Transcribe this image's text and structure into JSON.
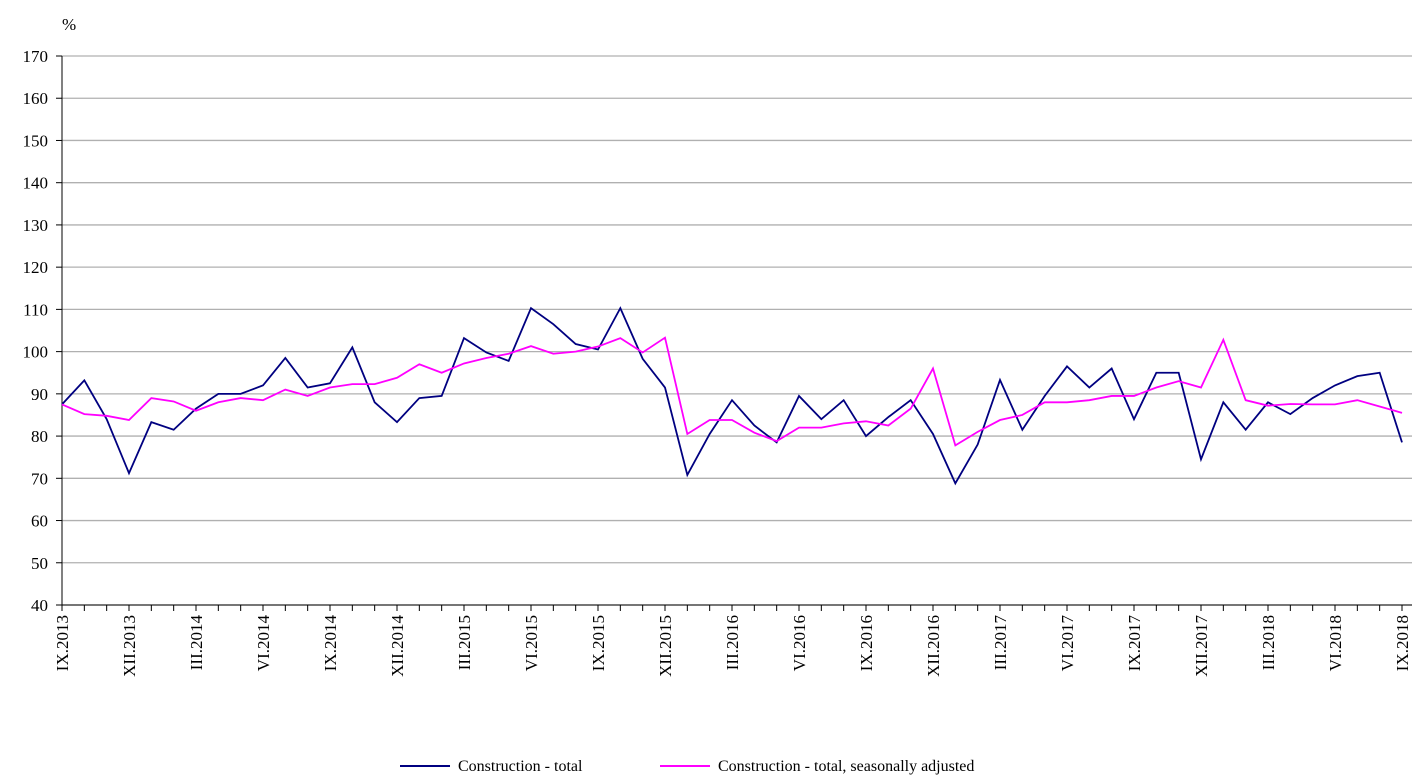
{
  "chart_data": {
    "type": "line",
    "ylabel": "%",
    "categories": [
      "IX.2013",
      null,
      null,
      "XII.2013",
      null,
      null,
      "III.2014",
      null,
      null,
      "VI.2014",
      null,
      null,
      "IX.2014",
      null,
      null,
      "XII.2014",
      null,
      null,
      "III.2015",
      null,
      null,
      "VI.2015",
      null,
      null,
      "IX.2015",
      null,
      null,
      "XII.2015",
      null,
      null,
      "III.2016",
      null,
      null,
      "VI.2016",
      null,
      null,
      "IX.2016",
      null,
      null,
      "XII.2016",
      null,
      null,
      "III.2017",
      null,
      null,
      "VI.2017",
      null,
      null,
      "IX.2017",
      null,
      null,
      "XII.2017",
      null,
      null,
      "III.2018",
      null,
      null,
      "VI.2018",
      null,
      null,
      "IX.2018"
    ],
    "series": [
      {
        "name": "Construction - total",
        "color": "#000080",
        "values": [
          87.5,
          93.2,
          84,
          71.2,
          83.3,
          81.5,
          86.5,
          90,
          90,
          92,
          98.5,
          91.5,
          92.5,
          101,
          88,
          83.3,
          89,
          89.5,
          103.2,
          99.8,
          97.8,
          110.3,
          106.5,
          101.8,
          100.5,
          110.3,
          98.3,
          91.5,
          70.8,
          80.5,
          88.5,
          82.5,
          78.5,
          89.5,
          84,
          88.5,
          80,
          84.5,
          88.5,
          80.5,
          68.8,
          78,
          93.3,
          81.5,
          89.5,
          96.5,
          91.5,
          96,
          84,
          95,
          95,
          74.5,
          88,
          81.5,
          88,
          85.2,
          89,
          92,
          94.2,
          95,
          78.5
        ]
      },
      {
        "name": "Construction - total, seasonally adjusted",
        "color": "#ff00ff",
        "values": [
          87.5,
          85.2,
          84.8,
          83.8,
          89,
          88.2,
          86,
          88,
          89,
          88.5,
          91,
          89.5,
          91.5,
          92.3,
          92.3,
          93.8,
          97,
          95,
          97.2,
          98.5,
          99.5,
          101.3,
          99.5,
          100,
          101.2,
          103.2,
          99.8,
          103.3,
          80.5,
          83.8,
          83.8,
          80.8,
          78.8,
          82,
          82,
          83,
          83.5,
          82.5,
          86.5,
          96,
          77.8,
          81,
          83.8,
          85,
          88,
          88,
          88.5,
          89.5,
          89.5,
          91.5,
          93,
          91.5,
          102.8,
          88.5,
          87.2,
          87.6,
          87.5,
          87.5,
          88.5,
          87,
          85.5
        ]
      }
    ],
    "ylim": [
      40,
      170
    ],
    "yticks": [
      40,
      50,
      60,
      70,
      80,
      90,
      100,
      110,
      120,
      130,
      140,
      150,
      160,
      170
    ],
    "grid": true
  }
}
